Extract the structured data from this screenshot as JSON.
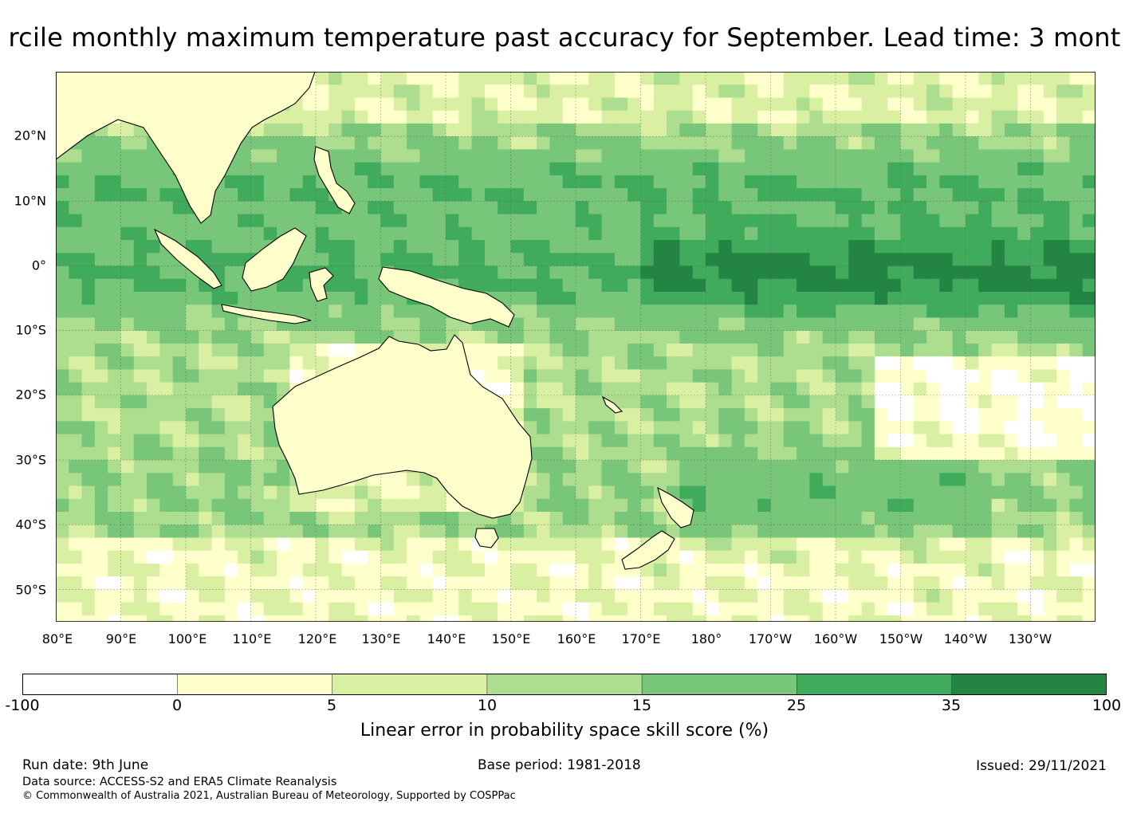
{
  "title": "rcile monthly maximum temperature past accuracy for September. Lead time: 3 mont",
  "map": {
    "lat_labels": [
      "20°N",
      "10°N",
      "0°",
      "10°S",
      "20°S",
      "30°S",
      "40°S",
      "50°S"
    ],
    "lon_labels": [
      "80°E",
      "90°E",
      "100°E",
      "110°E",
      "120°E",
      "130°E",
      "140°E",
      "150°E",
      "160°E",
      "170°E",
      "180°",
      "170°W",
      "160°W",
      "150°W",
      "140°W",
      "130°W"
    ],
    "extent": {
      "lon_min": 80,
      "lon_max": 240,
      "lat_min": -55,
      "lat_max": 30
    }
  },
  "colorbar": {
    "bounds": [
      "-100",
      "0",
      "5",
      "10",
      "15",
      "25",
      "35",
      "100"
    ],
    "colors": [
      "#ffffff",
      "#ffffcc",
      "#d9f0a3",
      "#addd8e",
      "#78c679",
      "#41ab5d",
      "#238443"
    ],
    "label": "Linear error in probability space skill score (%)"
  },
  "footer": {
    "run_date": "Run date: 9th June",
    "base_period": "Base period: 1981-2018",
    "issued": "Issued: 29/11/2021",
    "data_source": "Data source: ACCESS-S2 and ERA5 Climate Reanalysis",
    "copyright": "© Commonwealth of Australia 2021, Australian Bureau of Meteorology, Supported by COSPPac"
  }
}
